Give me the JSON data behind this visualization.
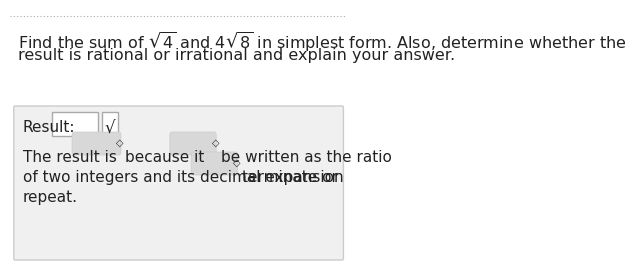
{
  "bg_color": "#ffffff",
  "top_border_color": "#aaaaaa",
  "title_text_line1": "Find the sum of $\\sqrt{4}$ and $4\\sqrt{8}$ in simplest form. Also, determine whether the",
  "title_text_line2": "result is rational or irrational and explain your answer.",
  "panel_bg": "#f0f0f0",
  "panel_border": "#cccccc",
  "result_label": "Result:",
  "input_box_color": "#ffffff",
  "input_box_border": "#aaaaaa",
  "check_symbol": "√",
  "check_box_color": "#ffffff",
  "check_box_border": "#aaaaaa",
  "dropdown_bg": "#d8d8d8",
  "dropdown_border": "#cccccc",
  "line1_text_parts": [
    "The result is",
    "because it",
    "be written as the ratio"
  ],
  "line2_text_parts": [
    "of two integers and its decimal expansion",
    "terminate or"
  ],
  "line3_text": "repeat.",
  "font_color": "#222222",
  "font_size_title": 11.5,
  "font_size_body": 11.0
}
